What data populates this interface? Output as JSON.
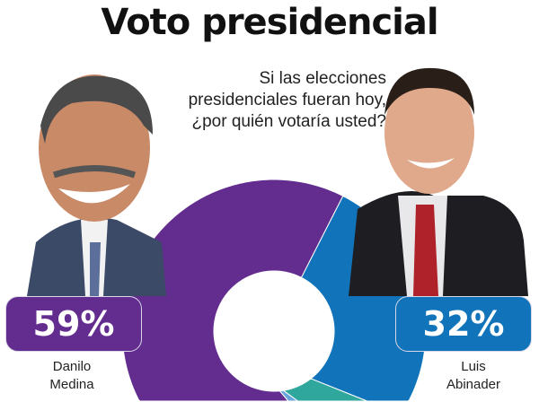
{
  "title": "Voto presidencial",
  "question": "Si las elecciones presidenciales fueran hoy, ¿por quién votaría usted?",
  "chart_data": {
    "type": "pie",
    "donut": true,
    "slices": [
      {
        "label": "Luis Abinader",
        "value": 32,
        "display": "32%",
        "color": "#1174bb"
      },
      {
        "value": 8,
        "color": "#2fa79c"
      },
      {
        "value": 1,
        "color": "#6aa6dc"
      },
      {
        "label": "Danilo Medina",
        "value": 59,
        "display": "59%",
        "color": "#632c8f"
      }
    ]
  },
  "candidates": [
    {
      "first": "Danilo",
      "last": "Medina",
      "pct": "59%",
      "color": "#632c8f"
    },
    {
      "first": "Luis",
      "last": "Abinader",
      "pct": "32%",
      "color": "#1174bb"
    }
  ]
}
